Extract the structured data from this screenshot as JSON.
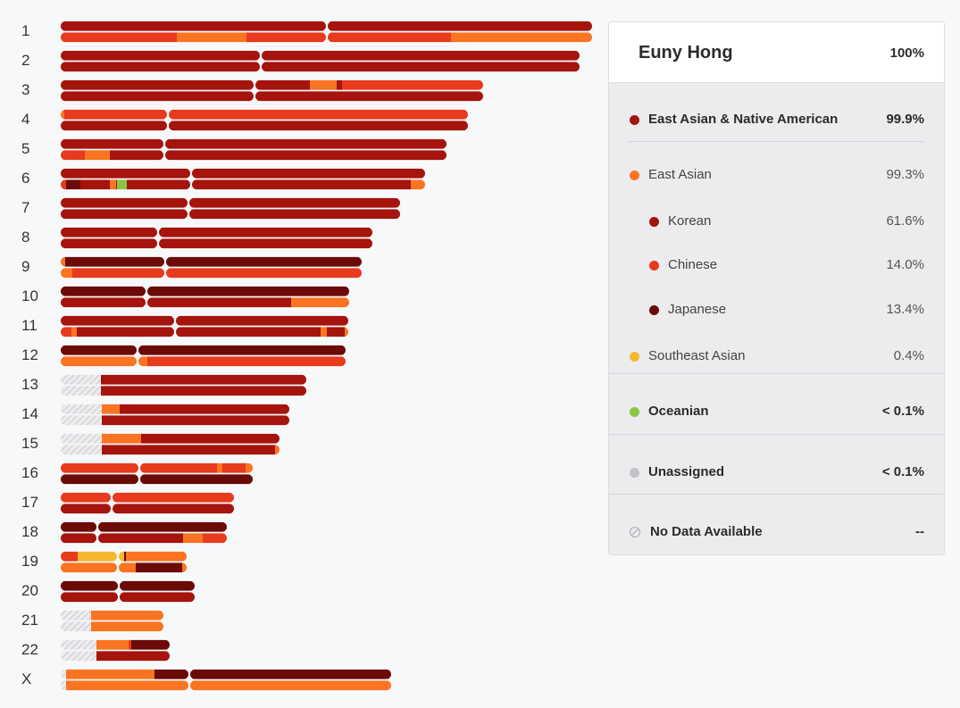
{
  "chart_data": {
    "type": "chromosome-painting",
    "title": "",
    "chromosomes": [
      {
        "label": "1",
        "len": 595,
        "cen": 298,
        "copies": [
          [
            [
              "korean",
              0,
              595
            ]
          ],
          [
            [
              "chinese",
              0,
              4
            ],
            [
              "chinese",
              4,
              130
            ],
            [
              "east_asian",
              130,
              208
            ],
            [
              "chinese",
              208,
              298
            ],
            [
              "chinese",
              298,
              437
            ],
            [
              "east_asian",
              437,
              595
            ]
          ]
        ]
      },
      {
        "label": "2",
        "len": 581,
        "cen": 224,
        "copies": [
          [
            [
              "korean",
              0,
              581
            ]
          ],
          [
            [
              "korean",
              0,
              581
            ]
          ]
        ]
      },
      {
        "label": "3",
        "len": 473,
        "cen": 217,
        "copies": [
          [
            [
              "korean",
              0,
              217
            ],
            [
              "korean",
              217,
              279
            ],
            [
              "east_asian",
              279,
              309
            ],
            [
              "korean",
              309,
              315
            ],
            [
              "chinese",
              315,
              473
            ]
          ],
          [
            [
              "korean",
              0,
              473
            ]
          ]
        ]
      },
      {
        "label": "4",
        "len": 456,
        "cen": 120,
        "copies": [
          [
            [
              "east_asian",
              0,
              4
            ],
            [
              "chinese",
              4,
              456
            ]
          ],
          [
            [
              "korean",
              0,
              456
            ]
          ]
        ]
      },
      {
        "label": "5",
        "len": 432,
        "cen": 116,
        "copies": [
          [
            [
              "korean",
              0,
              432
            ]
          ],
          [
            [
              "chinese",
              0,
              27
            ],
            [
              "east_asian",
              27,
              55
            ],
            [
              "korean",
              55,
              432
            ]
          ]
        ]
      },
      {
        "label": "6",
        "len": 408,
        "cen": 146,
        "copies": [
          [
            [
              "korean",
              0,
              408
            ]
          ],
          [
            [
              "chinese",
              0,
              6
            ],
            [
              "japanese",
              6,
              22
            ],
            [
              "korean",
              22,
              55
            ],
            [
              "east_asian",
              55,
              62
            ],
            [
              "korean",
              62,
              63
            ],
            [
              "oceanian",
              63,
              74
            ],
            [
              "korean",
              74,
              146
            ],
            [
              "korean",
              146,
              392
            ],
            [
              "east_asian",
              392,
              408
            ]
          ]
        ]
      },
      {
        "label": "7",
        "len": 380,
        "cen": 143,
        "copies": [
          [
            [
              "korean",
              0,
              380
            ]
          ],
          [
            [
              "korean",
              0,
              380
            ]
          ]
        ]
      },
      {
        "label": "8",
        "len": 349,
        "cen": 109,
        "copies": [
          [
            [
              "korean",
              0,
              349
            ]
          ],
          [
            [
              "korean",
              0,
              349
            ]
          ]
        ]
      },
      {
        "label": "9",
        "len": 337,
        "cen": 117,
        "copies": [
          [
            [
              "east_asian",
              0,
              5
            ],
            [
              "japanese",
              5,
              337
            ]
          ],
          [
            [
              "east_asian",
              0,
              13
            ],
            [
              "chinese",
              13,
              337
            ]
          ]
        ]
      },
      {
        "label": "10",
        "len": 323,
        "cen": 96,
        "copies": [
          [
            [
              "japanese",
              0,
              323
            ]
          ],
          [
            [
              "korean",
              0,
              258
            ],
            [
              "east_asian",
              258,
              323
            ]
          ]
        ]
      },
      {
        "label": "11",
        "len": 322,
        "cen": 128,
        "copies": [
          [
            [
              "korean",
              0,
              322
            ]
          ],
          [
            [
              "chinese",
              0,
              12
            ],
            [
              "east_asian",
              12,
              18
            ],
            [
              "korean",
              18,
              291
            ],
            [
              "east_asian",
              291,
              298
            ],
            [
              "korean",
              298,
              318
            ],
            [
              "east_asian",
              318,
              322
            ]
          ]
        ]
      },
      {
        "label": "12",
        "len": 319,
        "cen": 86,
        "copies": [
          [
            [
              "japanese",
              0,
              319
            ]
          ],
          [
            [
              "east_asian",
              0,
              97
            ],
            [
              "chinese",
              97,
              319
            ]
          ]
        ]
      },
      {
        "label": "13",
        "len": 275,
        "cen": 45,
        "nodata": 45,
        "copies": [
          [
            [
              "korean",
              45,
              275
            ]
          ],
          [
            [
              "korean",
              45,
              275
            ]
          ]
        ]
      },
      {
        "label": "14",
        "len": 256,
        "cen": 46,
        "nodata": 46,
        "copies": [
          [
            [
              "east_asian",
              46,
              66
            ],
            [
              "korean",
              66,
              256
            ]
          ],
          [
            [
              "korean",
              46,
              256
            ]
          ]
        ]
      },
      {
        "label": "15",
        "len": 245,
        "cen": 46,
        "nodata": 46,
        "copies": [
          [
            [
              "east_asian",
              46,
              90
            ],
            [
              "korean",
              90,
              245
            ]
          ],
          [
            [
              "korean",
              46,
              240
            ],
            [
              "east_asian",
              240,
              245
            ]
          ]
        ]
      },
      {
        "label": "16",
        "len": 215,
        "cen": 88,
        "copies": [
          [
            [
              "chinese",
              0,
              175
            ],
            [
              "east_asian",
              175,
              181
            ],
            [
              "chinese",
              181,
              207
            ],
            [
              "east_asian",
              207,
              215
            ]
          ],
          [
            [
              "japanese",
              0,
              215
            ]
          ]
        ]
      },
      {
        "label": "17",
        "len": 194,
        "cen": 57,
        "copies": [
          [
            [
              "chinese",
              0,
              194
            ]
          ],
          [
            [
              "korean",
              0,
              194
            ]
          ]
        ]
      },
      {
        "label": "18",
        "len": 186,
        "cen": 41,
        "copies": [
          [
            [
              "japanese",
              0,
              186
            ]
          ],
          [
            [
              "korean",
              0,
              137
            ],
            [
              "east_asian",
              137,
              159
            ],
            [
              "chinese",
              159,
              186
            ]
          ]
        ]
      },
      {
        "label": "19",
        "len": 141,
        "cen": 64,
        "copies": [
          [
            [
              "chinese",
              0,
              19
            ],
            [
              "southeast_asian",
              19,
              63
            ],
            [
              "southeast_asian",
              63,
              71
            ],
            [
              "japanese",
              71,
              73
            ],
            [
              "east_asian",
              73,
              141
            ]
          ],
          [
            [
              "east_asian",
              0,
              84
            ],
            [
              "japanese",
              84,
              136
            ],
            [
              "east_asian",
              136,
              141
            ]
          ]
        ]
      },
      {
        "label": "20",
        "len": 150,
        "cen": 65,
        "copies": [
          [
            [
              "japanese",
              0,
              150
            ]
          ],
          [
            [
              "korean",
              0,
              150
            ]
          ]
        ]
      },
      {
        "label": "21",
        "len": 115,
        "cen": 34,
        "nodata": 34,
        "copies": [
          [
            [
              "east_asian",
              34,
              115
            ]
          ],
          [
            [
              "east_asian",
              34,
              115
            ]
          ]
        ]
      },
      {
        "label": "22",
        "len": 122,
        "cen": 40,
        "nodata": 40,
        "copies": [
          [
            [
              "east_asian",
              40,
              76
            ],
            [
              "chinese",
              76,
              79
            ],
            [
              "japanese",
              79,
              122
            ]
          ],
          [
            [
              "korean",
              40,
              122
            ]
          ]
        ]
      },
      {
        "label": "X",
        "len": 370,
        "cen": 144,
        "nodata": 6,
        "copies": [
          [
            [
              "east_asian",
              6,
              105
            ],
            [
              "japanese",
              105,
              370
            ]
          ],
          [
            [
              "east_asian",
              6,
              370
            ]
          ]
        ]
      }
    ]
  },
  "colors": {
    "korean": "#a5140d",
    "chinese": "#e83a1d",
    "japanese": "#6b0a07",
    "east_asian": "#fb7421",
    "southeast_asian": "#f5b82e",
    "oceanian": "#8cc641",
    "unassigned": "#c2c3c6",
    "nodata": "#d0d1d4"
  },
  "panel": {
    "name": "Euny Hong",
    "total": "100%",
    "rows": [
      {
        "label": "East Asian & Native American",
        "value": "99.9%",
        "color": "#a5140d",
        "bold": true,
        "indent": 0,
        "icon": "dot"
      },
      {
        "label": "East Asian",
        "value": "99.3%",
        "color": "#fb7421",
        "bold": false,
        "indent": 0,
        "icon": "dot"
      },
      {
        "label": "Korean",
        "value": "61.6%",
        "color": "#a5140d",
        "bold": false,
        "indent": 1,
        "icon": "dot"
      },
      {
        "label": "Chinese",
        "value": "14.0%",
        "color": "#e83a1d",
        "bold": false,
        "indent": 1,
        "icon": "dot"
      },
      {
        "label": "Japanese",
        "value": "13.4%",
        "color": "#6b0a07",
        "bold": false,
        "indent": 1,
        "icon": "dot"
      },
      {
        "label": "Southeast Asian",
        "value": "0.4%",
        "color": "#f5b82e",
        "bold": false,
        "indent": 0,
        "icon": "dot"
      },
      {
        "label": "Oceanian",
        "value": "< 0.1%",
        "color": "#8cc641",
        "bold": true,
        "indent": 0,
        "icon": "dot"
      },
      {
        "label": "Unassigned",
        "value": "< 0.1%",
        "color": "#c2c3c6",
        "bold": true,
        "indent": 0,
        "icon": "dot"
      },
      {
        "label": "No Data Available",
        "value": "--",
        "color": "#b5b6b9",
        "bold": true,
        "indent": 0,
        "icon": "no-data-icon"
      }
    ]
  }
}
